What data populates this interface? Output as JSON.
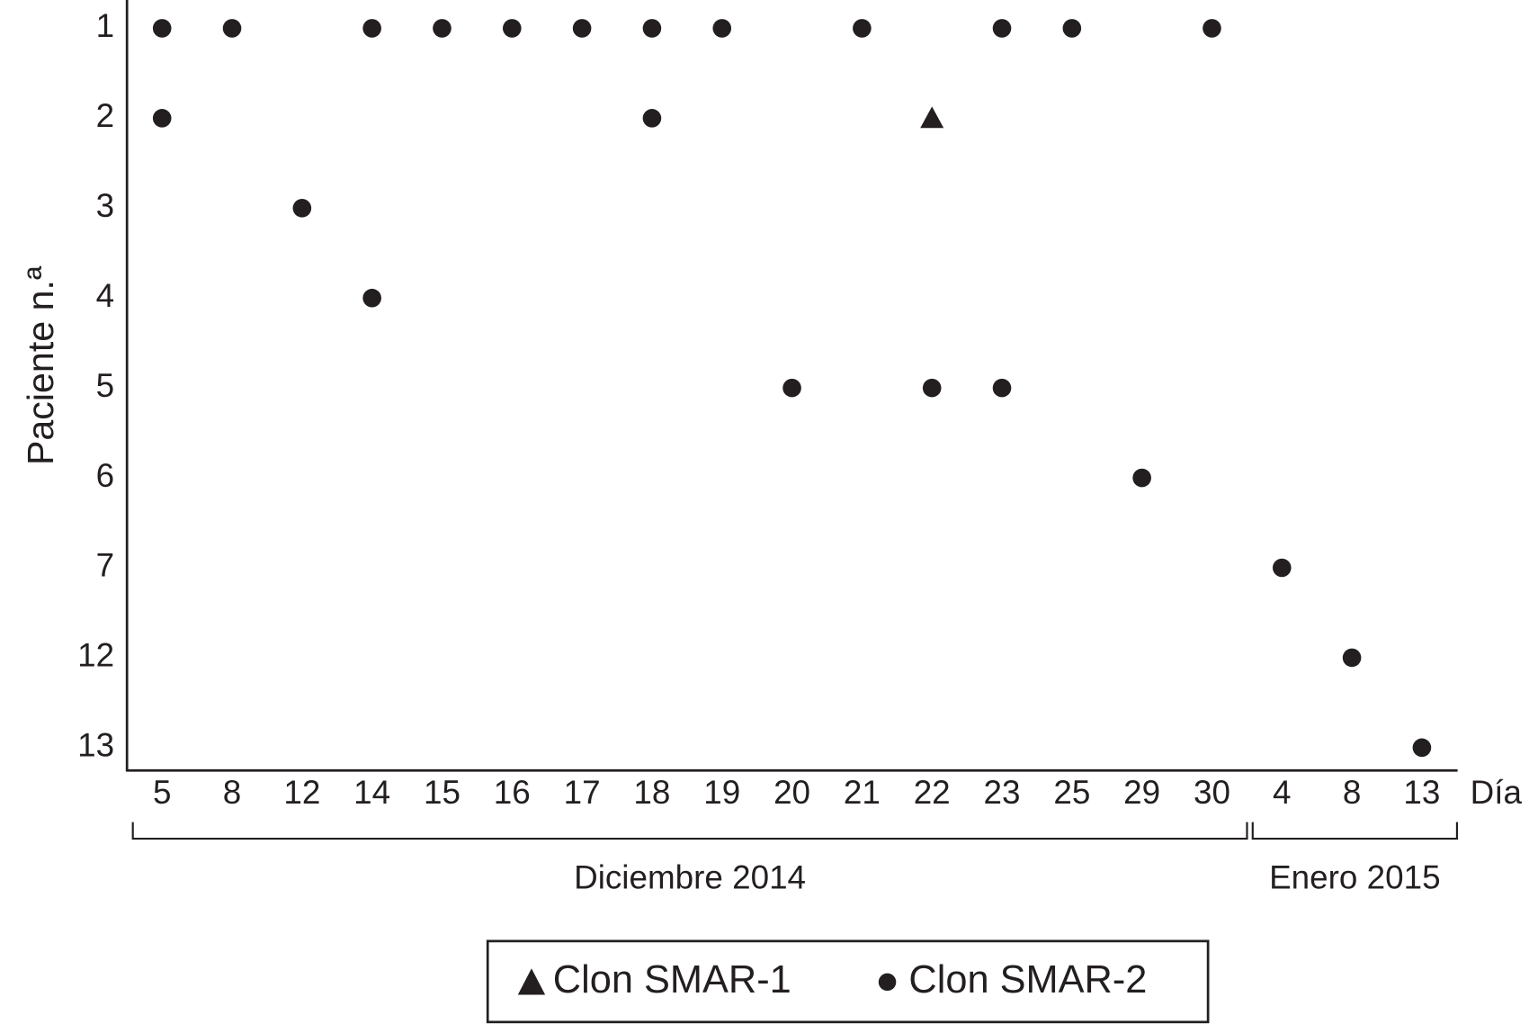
{
  "chart_data": {
    "type": "scatter",
    "ylabel": "Paciente n.ª",
    "xlabel": "Día",
    "ycategories": [
      1,
      2,
      3,
      4,
      5,
      6,
      7,
      12,
      13
    ],
    "months": [
      {
        "name": "Diciembre 2014",
        "days": [
          "5",
          "8",
          "12",
          "14",
          "15",
          "16",
          "17",
          "18",
          "19",
          "20",
          "21",
          "22",
          "23",
          "25",
          "29",
          "30"
        ]
      },
      {
        "name": "Enero 2015",
        "days": [
          "4",
          "8",
          "13"
        ]
      }
    ],
    "series": [
      {
        "name": "Clon SMAR-1",
        "marker": "triangle",
        "color": "#231f20",
        "values": [
          [
            [],
            [],
            [],
            [],
            [],
            [],
            [],
            [],
            [],
            [],
            [],
            [
              2
            ],
            [],
            [],
            [],
            []
          ],
          [
            [],
            [],
            []
          ]
        ]
      },
      {
        "name": "Clon SMAR-2",
        "marker": "circle",
        "color": "#231f20",
        "values": [
          [
            [
              1,
              2
            ],
            [
              1
            ],
            [
              3
            ],
            [
              1,
              4
            ],
            [
              1
            ],
            [
              1
            ],
            [
              1
            ],
            [
              1,
              2
            ],
            [
              1
            ],
            [
              5
            ],
            [
              1
            ],
            [
              5
            ],
            [
              1,
              5
            ],
            [
              1
            ],
            [
              6
            ],
            [
              1
            ]
          ],
          [
            [
              7
            ],
            [
              12
            ],
            [
              13
            ]
          ]
        ]
      }
    ]
  }
}
